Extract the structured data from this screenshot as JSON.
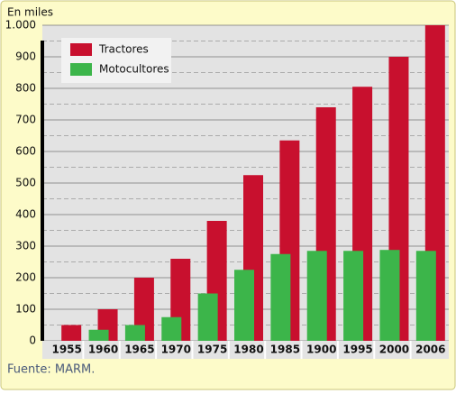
{
  "chart_data": {
    "type": "bar",
    "unit_label": "En miles",
    "source": "Fuente: MARM.",
    "categories": [
      "1955",
      "1960",
      "1965",
      "1970",
      "1975",
      "1980",
      "1985",
      "1900",
      "1995",
      "2000",
      "2006"
    ],
    "series": [
      {
        "name": "Tractores",
        "color": "#c8102e",
        "values": [
          50,
          100,
          200,
          260,
          380,
          525,
          635,
          740,
          805,
          900,
          1000
        ]
      },
      {
        "name": "Motocultores",
        "color": "#3cb54a",
        "values": [
          null,
          35,
          50,
          75,
          150,
          225,
          275,
          285,
          285,
          288,
          285
        ]
      }
    ],
    "ylim": [
      0,
      1000
    ],
    "yticks": [
      0,
      100,
      200,
      300,
      400,
      500,
      600,
      700,
      800,
      900,
      {
        "value": 1000,
        "label": "1.000"
      }
    ],
    "grid": true,
    "legend": "top-left"
  }
}
